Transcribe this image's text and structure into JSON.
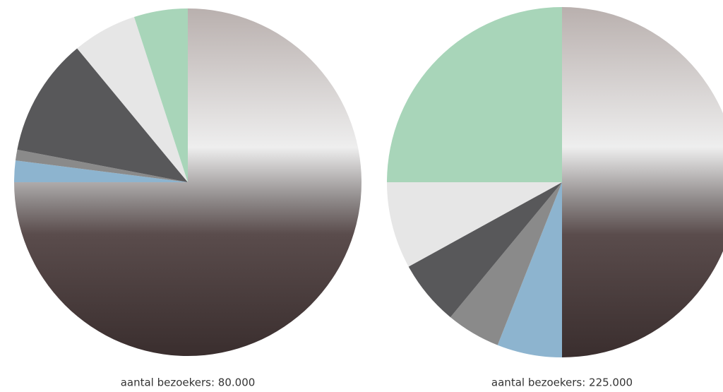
{
  "chart_data": [
    {
      "type": "pie",
      "label": "aantal bezoekers: 80.000",
      "values": [
        75,
        2,
        1,
        11,
        6,
        5
      ],
      "colors": [
        "#b9b0ae",
        "#8db4cf",
        "#8a8a8a",
        "#58585a",
        "#e6e6e6",
        "#a8d5b9"
      ]
    },
    {
      "type": "pie",
      "label": "aantal bezoekers: 225.000",
      "values": [
        50,
        6,
        5,
        6,
        8,
        25
      ],
      "colors": [
        "#b9b0ae",
        "#8db4cf",
        "#8a8a8a",
        "#58585a",
        "#e6e6e6",
        "#a8d5b9"
      ]
    }
  ]
}
